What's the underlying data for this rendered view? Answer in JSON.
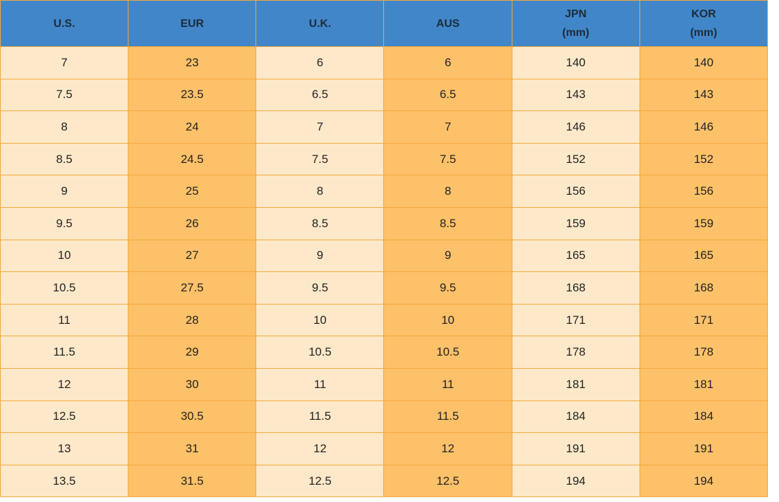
{
  "table": {
    "headers": [
      "U.S.",
      "EUR",
      "U.K.",
      "AUS",
      "JPN\n(mm)",
      "KOR\n(mm)"
    ],
    "rows": [
      [
        "7",
        "23",
        "6",
        "6",
        "140",
        "140"
      ],
      [
        "7.5",
        "23.5",
        "6.5",
        "6.5",
        "143",
        "143"
      ],
      [
        "8",
        "24",
        "7",
        "7",
        "146",
        "146"
      ],
      [
        "8.5",
        "24.5",
        "7.5",
        "7.5",
        "152",
        "152"
      ],
      [
        "9",
        "25",
        "8",
        "8",
        "156",
        "156"
      ],
      [
        "9.5",
        "26",
        "8.5",
        "8.5",
        "159",
        "159"
      ],
      [
        "10",
        "27",
        "9",
        "9",
        "165",
        "165"
      ],
      [
        "10.5",
        "27.5",
        "9.5",
        "9.5",
        "168",
        "168"
      ],
      [
        "11",
        "28",
        "10",
        "10",
        "171",
        "171"
      ],
      [
        "11.5",
        "29",
        "10.5",
        "10.5",
        "178",
        "178"
      ],
      [
        "12",
        "30",
        "11",
        "11",
        "181",
        "181"
      ],
      [
        "12.5",
        "30.5",
        "11.5",
        "11.5",
        "184",
        "184"
      ],
      [
        "13",
        "31",
        "12",
        "12",
        "191",
        "191"
      ],
      [
        "13.5",
        "31.5",
        "12.5",
        "12.5",
        "194",
        "194"
      ]
    ]
  }
}
